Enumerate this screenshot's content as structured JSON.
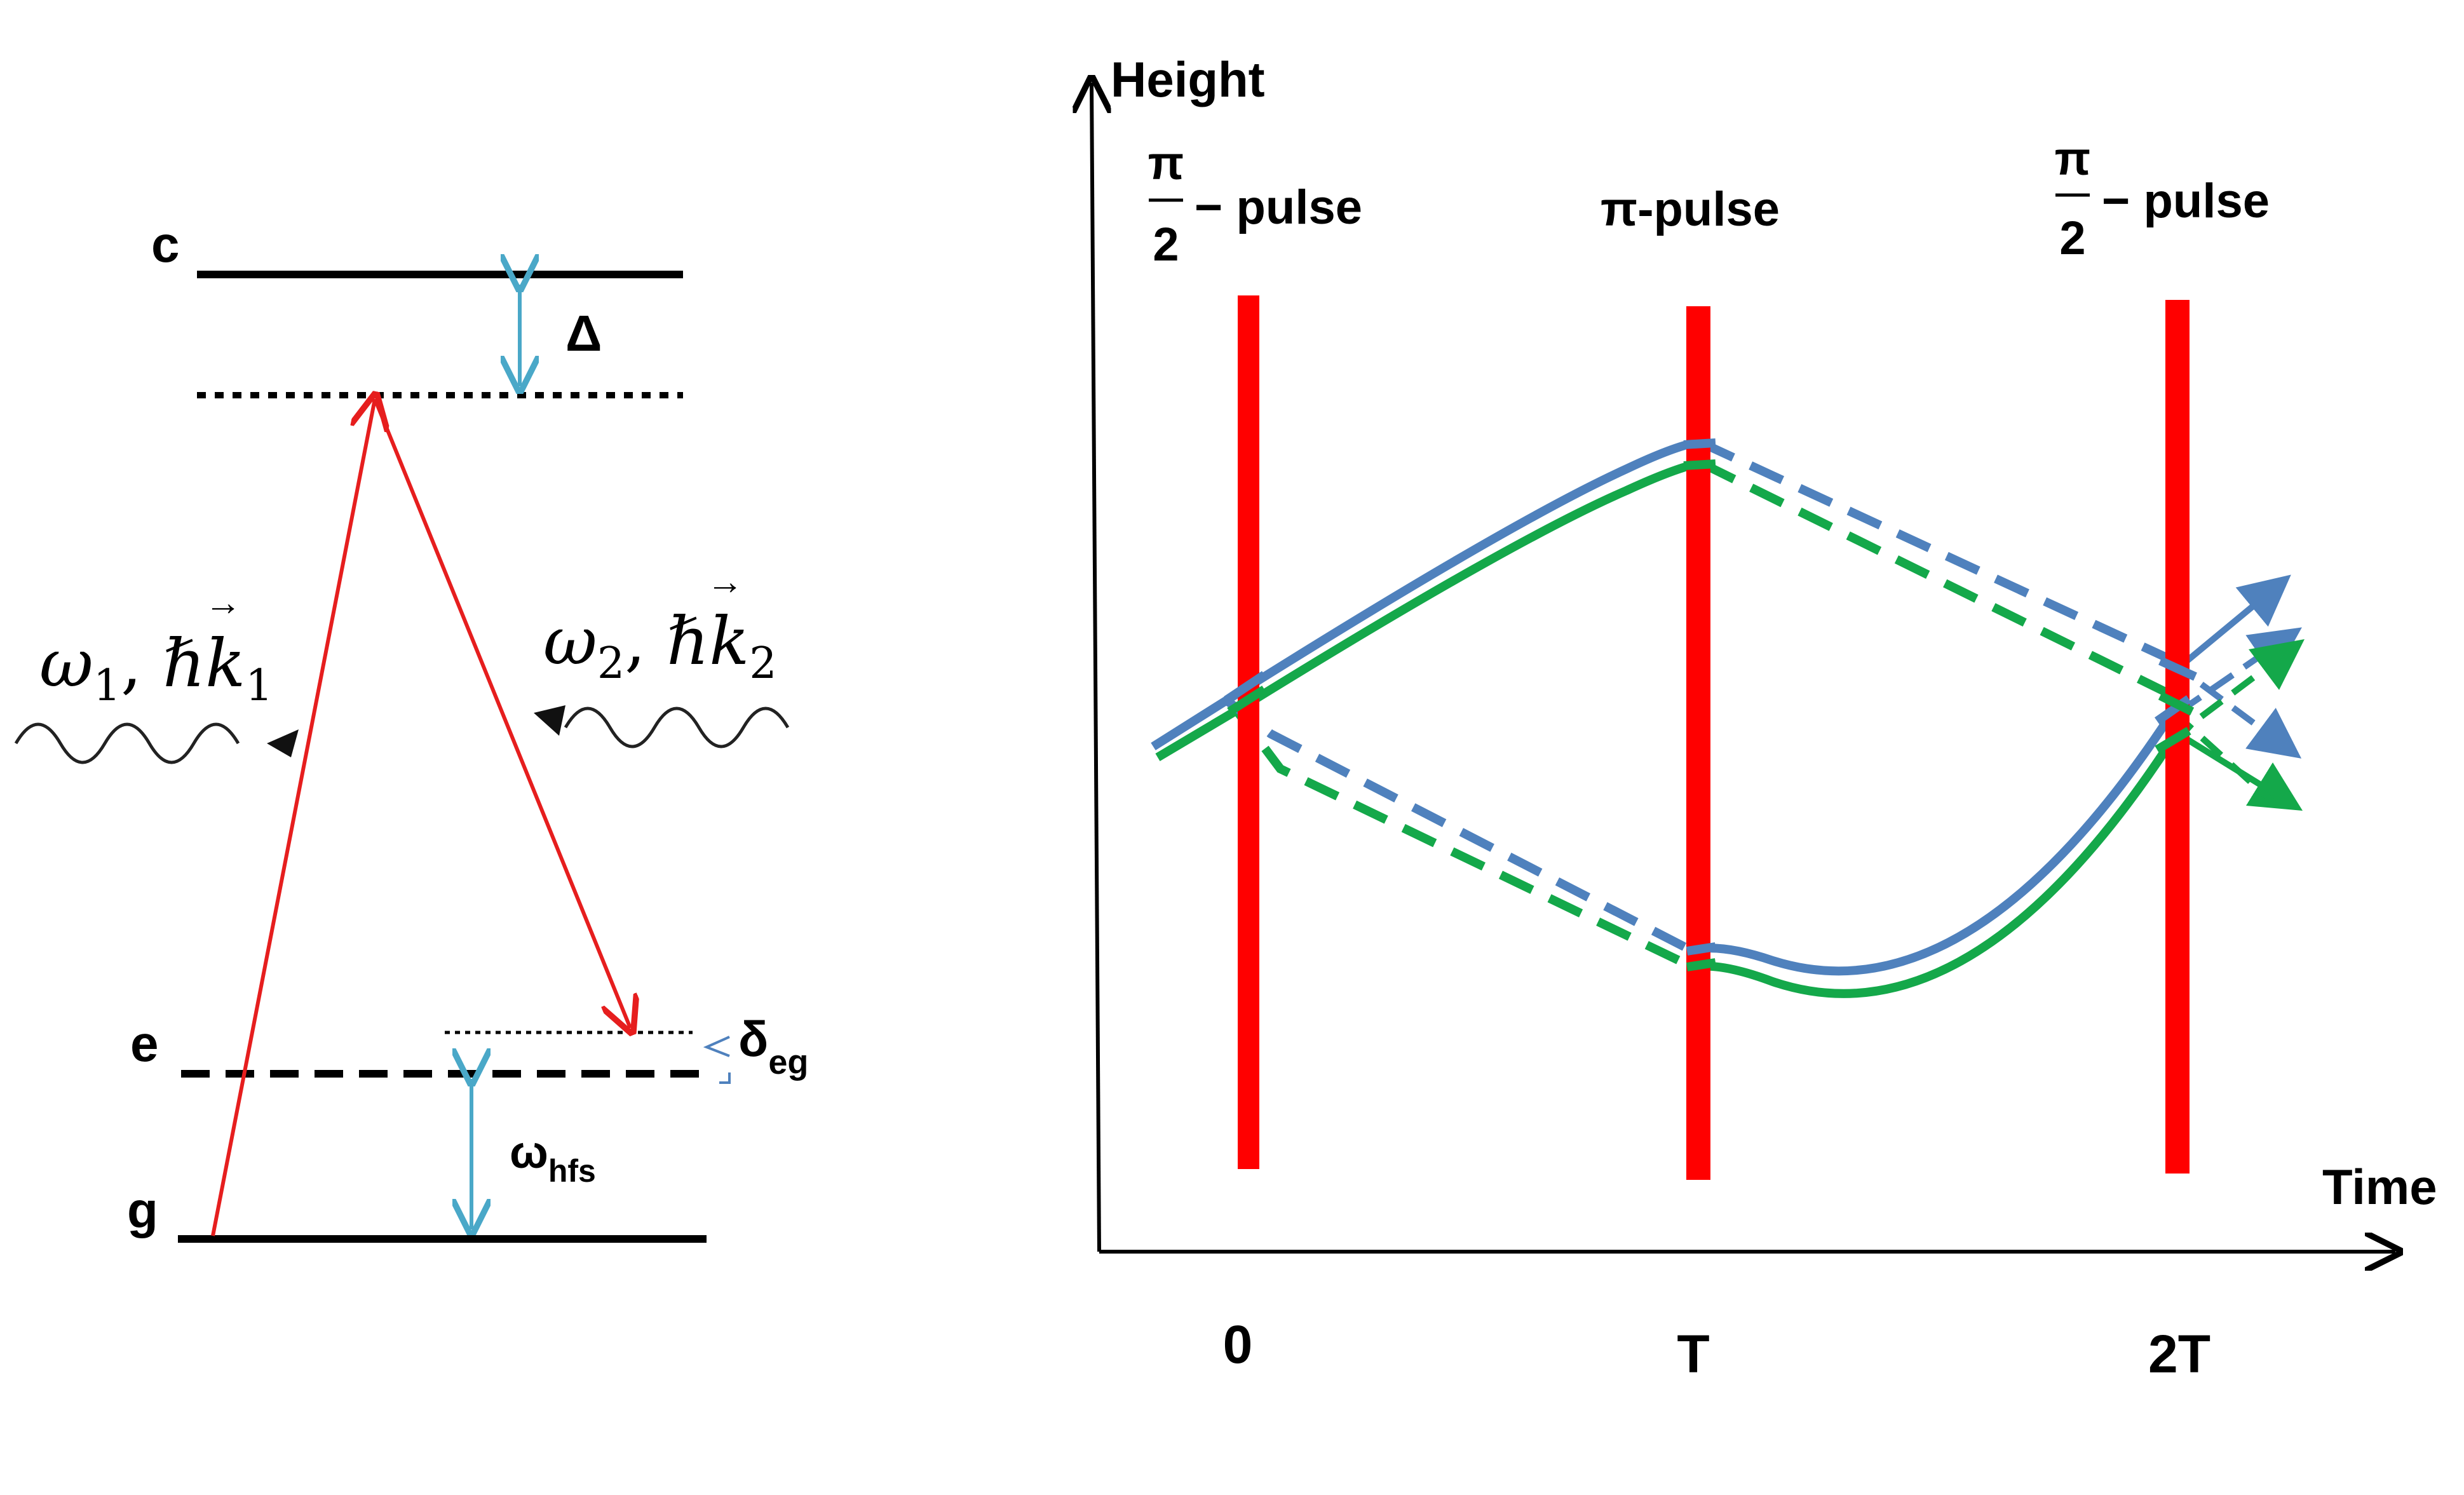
{
  "energy_diagram": {
    "levels": {
      "c": "c",
      "e": "e",
      "g": "g"
    },
    "labels": {
      "detuning": "Δ",
      "delta_symbol": "δ",
      "delta_sub": "eg",
      "hfs_symbol": "ω",
      "hfs_sub": "hfs"
    },
    "beam1": {
      "omega": "ω",
      "omega_sub": "1",
      "sep": ", ",
      "hbar": "ℏ",
      "k": "k",
      "k_sub": "1",
      "vector_mark": "→"
    },
    "beam2": {
      "omega": "ω",
      "omega_sub": "2",
      "sep": ", ",
      "hbar": "ℏ",
      "k": "k",
      "k_sub": "2",
      "vector_mark": "→"
    }
  },
  "interferometer": {
    "y_axis_label": "Height",
    "x_axis_label": "Time",
    "ticks": [
      "0",
      "T",
      "2T"
    ],
    "pulses": {
      "first": {
        "num": "π",
        "den": "2",
        "suffix": "− pulse"
      },
      "middle": "π-pulse",
      "last": {
        "num": "π",
        "den": "2",
        "suffix": "− pulse"
      }
    },
    "colors": {
      "pulse": "#ff0000",
      "path_blue": "#4f81bd",
      "path_green": "#14a84a",
      "laser": "#e61e1e",
      "level_arrow": "#4aa8c8"
    }
  }
}
